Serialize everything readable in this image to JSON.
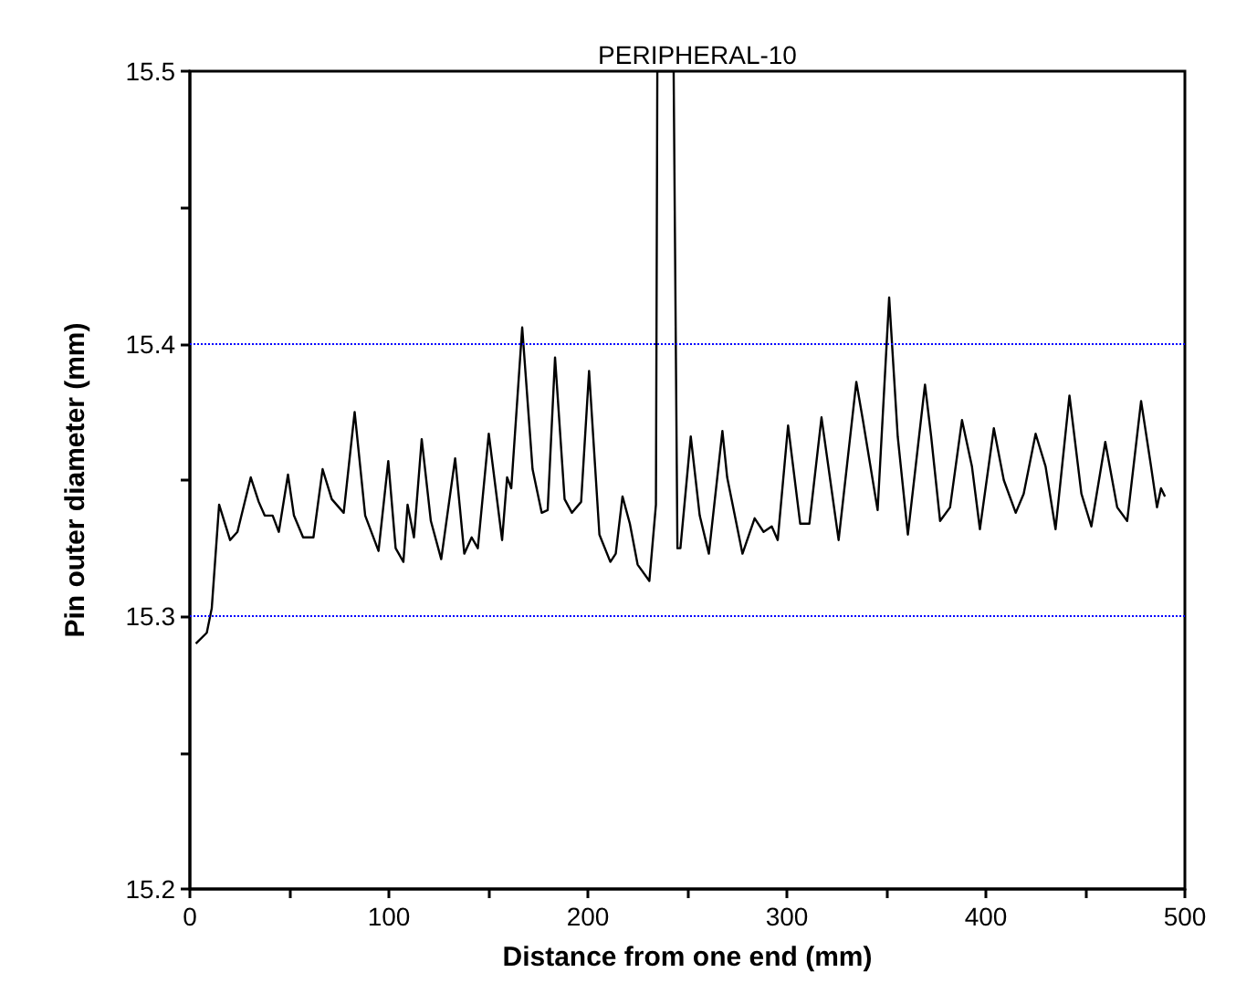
{
  "chart_data": {
    "type": "line",
    "title": "PERIPHERAL-10",
    "xlabel": "Distance from one end (mm)",
    "ylabel": "Pin outer diameter (mm)",
    "xlim": [
      0,
      500
    ],
    "xticks": [
      0,
      {
        "value": 50,
        "label": null
      },
      100,
      {
        "value": 150,
        "label": null
      },
      200,
      {
        "value": 250,
        "label": null
      },
      300,
      {
        "value": 350,
        "label": null
      },
      400,
      {
        "value": 450,
        "label": null
      },
      500
    ],
    "ylim": [
      15.2,
      15.5
    ],
    "yticks": [
      15.2,
      {
        "value": 15.25,
        "label": null
      },
      15.3,
      {
        "value": 15.35,
        "label": null
      },
      15.4,
      {
        "value": 15.45,
        "label": null
      },
      15.5
    ],
    "marker": "none",
    "line_style": "solid",
    "ref_lines": [
      {
        "axis": "y",
        "value": 15.3,
        "color": "#0000ff",
        "line_style": "dotted"
      },
      {
        "axis": "y",
        "value": 15.4,
        "color": "#0000ff",
        "line_style": "dotted"
      }
    ],
    "series": [
      {
        "color": "#000000",
        "x": [
          3.0,
          8.5,
          11.0,
          14.7,
          20.2,
          23.9,
          30.6,
          34.6,
          37.6,
          41.6,
          44.7,
          49.3,
          52.3,
          56.9,
          62.1,
          66.7,
          71.3,
          77.3,
          82.8,
          88.1,
          94.8,
          99.7,
          103.4,
          107.3,
          109.4,
          112.6,
          116.5,
          121.1,
          126.3,
          133.3,
          137.9,
          141.6,
          144.7,
          150.2,
          156.9,
          159.4,
          161.5,
          167.0,
          172.2,
          176.8,
          179.8,
          183.5,
          188.3,
          192.0,
          196.6,
          200.6,
          205.8,
          211.3,
          214.0,
          217.4,
          221.1,
          225.0,
          230.9,
          234.2,
          234.9,
          243.1,
          245.0,
          246.5,
          251.7,
          256.2,
          260.8,
          267.6,
          270.0,
          277.7,
          283.8,
          288.3,
          292.4,
          295.4,
          300.6,
          306.7,
          311.3,
          317.4,
          326.0,
          334.9,
          338.2,
          345.6,
          351.4,
          355.7,
          360.8,
          369.4,
          372.5,
          377,
          382,
          388,
          393,
          397,
          404,
          409,
          415,
          419,
          425,
          430,
          435,
          442,
          448,
          453,
          460,
          466,
          471,
          478,
          483,
          486,
          488,
          490
        ],
        "values": [
          15.29,
          15.294,
          15.303,
          15.341,
          15.328,
          15.331,
          15.351,
          15.342,
          15.337,
          15.337,
          15.331,
          15.352,
          15.337,
          15.329,
          15.329,
          15.354,
          15.343,
          15.338,
          15.375,
          15.337,
          15.324,
          15.357,
          15.325,
          15.32,
          15.341,
          15.329,
          15.365,
          15.335,
          15.321,
          15.358,
          15.323,
          15.329,
          15.325,
          15.367,
          15.328,
          15.351,
          15.347,
          15.406,
          15.354,
          15.338,
          15.339,
          15.395,
          15.343,
          15.338,
          15.342,
          15.39,
          15.33,
          15.32,
          15.323,
          15.344,
          15.334,
          15.319,
          15.313,
          15.341,
          15.5,
          15.5,
          15.325,
          15.325,
          15.366,
          15.337,
          15.323,
          15.368,
          15.351,
          15.323,
          15.336,
          15.331,
          15.333,
          15.328,
          15.37,
          15.334,
          15.334,
          15.373,
          15.328,
          15.386,
          15.372,
          15.339,
          15.417,
          15.366,
          15.33,
          15.385,
          15.366,
          15.335,
          15.34,
          15.372,
          15.355,
          15.332,
          15.369,
          15.35,
          15.338,
          15.345,
          15.367,
          15.355,
          15.332,
          15.381,
          15.345,
          15.333,
          15.364,
          15.34,
          15.335,
          15.379,
          15.355,
          15.34,
          15.347,
          15.344
        ]
      }
    ]
  }
}
